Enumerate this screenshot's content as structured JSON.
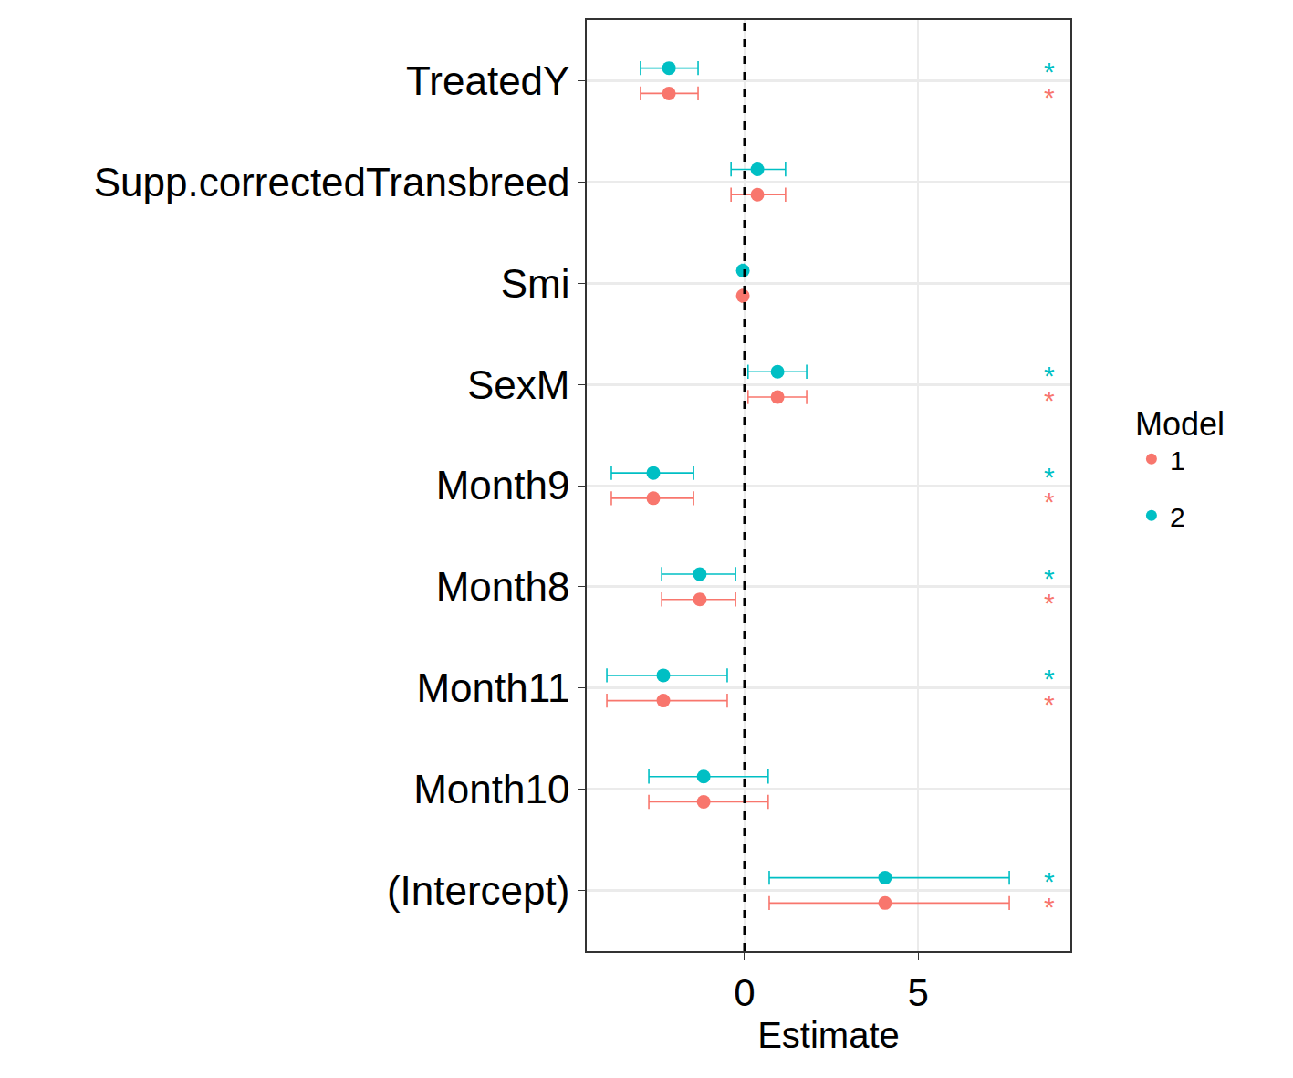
{
  "chart_data": {
    "type": "coefficient",
    "x_label": "Estimate",
    "legend_title": "Model",
    "categories": [
      "(Intercept)",
      "Month10",
      "Month11",
      "Month8",
      "Month9",
      "SexM",
      "Smi",
      "Supp.correctedTransbreed",
      "TreatedY"
    ],
    "series": [
      {
        "name": "1",
        "color": "#F8766D",
        "values": [
          4.05,
          -1.18,
          -2.34,
          -1.29,
          -2.63,
          0.95,
          -0.05,
          0.37,
          -2.18
        ],
        "lower": [
          0.71,
          -2.76,
          -3.97,
          -2.39,
          -3.84,
          0.1,
          -0.08,
          -0.39,
          -3.0
        ],
        "upper": [
          7.63,
          0.68,
          -0.5,
          -0.26,
          -1.47,
          1.79,
          -0.02,
          1.18,
          -1.34
        ],
        "signif": [
          "*",
          null,
          "*",
          "*",
          "*",
          "*",
          null,
          null,
          "*"
        ]
      },
      {
        "name": "2",
        "color": "#00BFC4",
        "values": [
          4.05,
          -1.18,
          -2.34,
          -1.29,
          -2.63,
          0.95,
          -0.05,
          0.37,
          -2.18
        ],
        "lower": [
          0.71,
          -2.76,
          -3.97,
          -2.39,
          -3.84,
          0.1,
          -0.08,
          -0.39,
          -3.0
        ],
        "upper": [
          7.63,
          0.68,
          -0.5,
          -0.26,
          -1.47,
          1.79,
          -0.02,
          1.18,
          -1.34
        ],
        "signif": [
          "*",
          null,
          "*",
          "*",
          "*",
          "*",
          null,
          null,
          "*"
        ]
      }
    ],
    "vline": 0,
    "xlim": [
      -4.55,
      9.39
    ],
    "xticks": [
      0,
      5
    ],
    "grid": true,
    "legend": "right"
  }
}
